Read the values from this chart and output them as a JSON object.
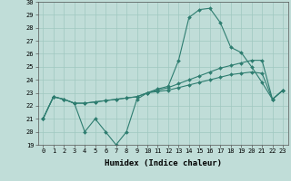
{
  "x": [
    0,
    1,
    2,
    3,
    4,
    5,
    6,
    7,
    8,
    9,
    10,
    11,
    12,
    13,
    14,
    15,
    16,
    17,
    18,
    19,
    20,
    21,
    22,
    23
  ],
  "line1": [
    21,
    22.7,
    22.5,
    22.2,
    20,
    21,
    20,
    19,
    20,
    22.5,
    23,
    23.3,
    23.5,
    25.5,
    28.8,
    29.4,
    29.5,
    28.4,
    26.5,
    26.1,
    25,
    23.8,
    22.5,
    23.2
  ],
  "line2": [
    21,
    22.7,
    22.5,
    22.2,
    22.2,
    22.3,
    22.4,
    22.5,
    22.6,
    22.7,
    23.0,
    23.2,
    23.4,
    23.7,
    24.0,
    24.3,
    24.6,
    24.9,
    25.1,
    25.3,
    25.5,
    25.5,
    22.5,
    23.2
  ],
  "line3": [
    21,
    22.7,
    22.5,
    22.2,
    22.2,
    22.3,
    22.4,
    22.5,
    22.6,
    22.7,
    23.0,
    23.1,
    23.2,
    23.4,
    23.6,
    23.8,
    24.0,
    24.2,
    24.4,
    24.5,
    24.6,
    24.5,
    22.5,
    23.2
  ],
  "color": "#2e7d70",
  "bg_color": "#c0ddd8",
  "grid_color": "#a0c8c0",
  "ylim": [
    19,
    30
  ],
  "xlim": [
    -0.5,
    23.5
  ],
  "yticks": [
    19,
    20,
    21,
    22,
    23,
    24,
    25,
    26,
    27,
    28,
    29,
    30
  ],
  "xticks": [
    0,
    1,
    2,
    3,
    4,
    5,
    6,
    7,
    8,
    9,
    10,
    11,
    12,
    13,
    14,
    15,
    16,
    17,
    18,
    19,
    20,
    21,
    22,
    23
  ],
  "xlabel": "Humidex (Indice chaleur)",
  "xlabel_fontsize": 6.5,
  "tick_fontsize": 5.0,
  "linewidth": 0.8,
  "marker": "D",
  "markersize": 2.0
}
